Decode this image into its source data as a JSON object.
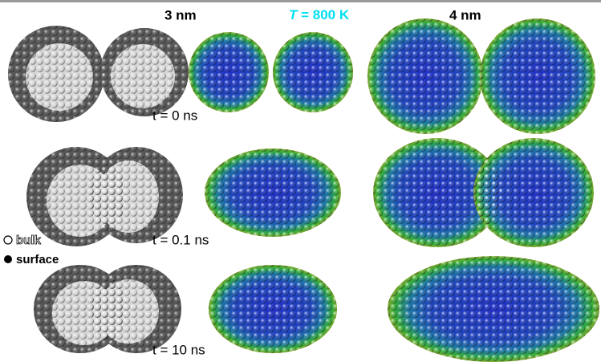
{
  "header": {
    "size_left": "3 nm",
    "temperature": {
      "symbol": "T",
      "value": "= 800 K"
    },
    "size_right": "4 nm"
  },
  "rows": [
    {
      "time": "t = 0 ns"
    },
    {
      "time": "t = 0.1 ns"
    },
    {
      "time": "t = 10 ns"
    }
  ],
  "legend": [
    "bulk",
    "surface"
  ]
}
